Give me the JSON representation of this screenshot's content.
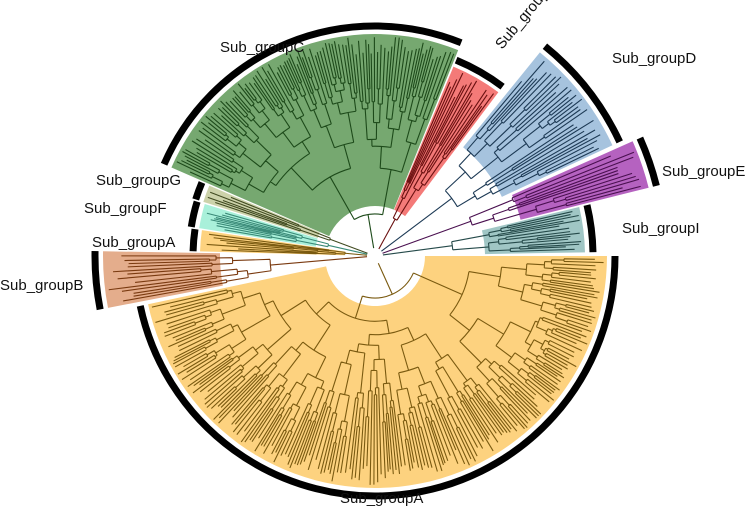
{
  "groups": [
    {
      "id": "A_main",
      "label": "Sub_groupA",
      "color": "#fdd27f",
      "branch": "#7a5a10",
      "start": 0,
      "end": 168
    },
    {
      "id": "B",
      "label": "Sub_groupB",
      "color": "#e4ad8c",
      "branch": "#7a3a10",
      "start": 169,
      "end": 181
    },
    {
      "id": "A_small",
      "label": "Sub_groupA",
      "color": "#fdd27f",
      "branch": "#7a5a10",
      "start": 181.5,
      "end": 188.5
    },
    {
      "id": "F",
      "label": "Sub_groupF",
      "color": "#a9f0da",
      "branch": "#3a8a78",
      "start": 189,
      "end": 197
    },
    {
      "id": "G",
      "label": "Sub_groupG",
      "color": "#ccd2aa",
      "branch": "#404a20",
      "start": 197.5,
      "end": 203
    },
    {
      "id": "C",
      "label": "Sub_groupC",
      "color": "#76a870",
      "branch": "#1d4a1a",
      "start": 203.5,
      "end": 292
    },
    {
      "id": "H",
      "label": "Sub_groupH",
      "color": "#f47a78",
      "branch": "#6a1010",
      "start": 292.5,
      "end": 307
    },
    {
      "id": "D",
      "label": "Sub_groupD",
      "color": "#a6c3de",
      "branch": "#1d3a55",
      "start": 309,
      "end": 335
    },
    {
      "id": "E",
      "label": "Sub_groupE",
      "color": "#b562c0",
      "branch": "#4a1050",
      "start": 336,
      "end": 346
    },
    {
      "id": "I",
      "label": "Sub_groupI",
      "color": "#a0c6c5",
      "branch": "#254a4a",
      "start": 346.5,
      "end": 359
    }
  ]
}
